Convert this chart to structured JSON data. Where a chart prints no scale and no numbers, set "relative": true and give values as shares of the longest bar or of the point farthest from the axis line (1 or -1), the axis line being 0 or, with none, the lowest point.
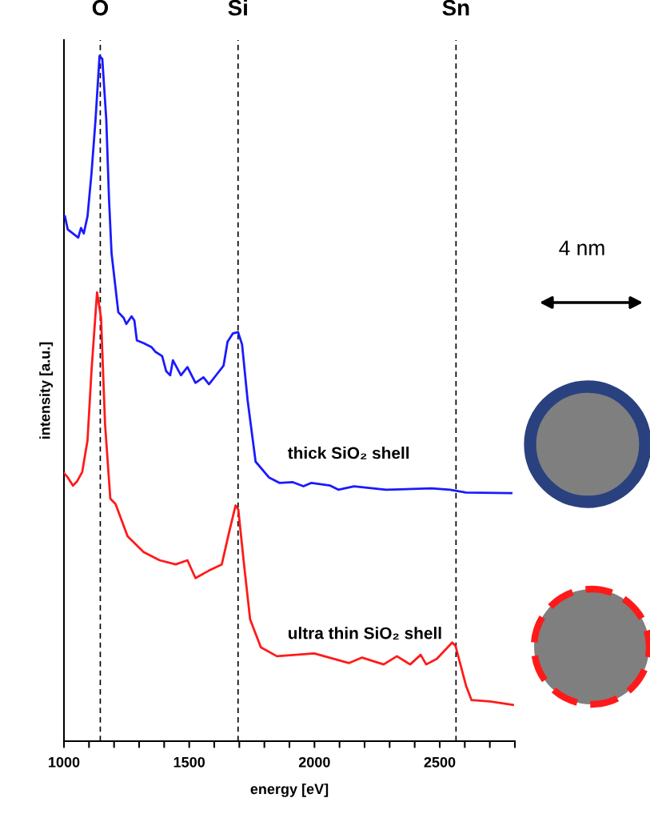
{
  "chart_data": {
    "type": "line",
    "relative": true,
    "xlabel": "energy [eV]",
    "ylabel": "intensity [a.u.]",
    "xlim": [
      1000,
      2800
    ],
    "xticks": [
      1000,
      {
        "value": 1100,
        "label": null
      },
      {
        "value": 1200,
        "label": null
      },
      {
        "value": 1300,
        "label": null
      },
      {
        "value": 1400,
        "label": null
      },
      1500,
      {
        "value": 1600,
        "label": null
      },
      {
        "value": 1700,
        "label": null
      },
      {
        "value": 1800,
        "label": null
      },
      {
        "value": 1900,
        "label": null
      },
      2000,
      {
        "value": 2100,
        "label": null
      },
      {
        "value": 2200,
        "label": null
      },
      {
        "value": 2300,
        "label": null
      },
      {
        "value": 2400,
        "label": null
      },
      2500,
      {
        "value": 2600,
        "label": null
      },
      {
        "value": 2700,
        "label": null
      },
      {
        "value": 2800,
        "label": null
      }
    ],
    "grid": false,
    "legend": false,
    "marker": "none",
    "line_style": "solid",
    "series": [
      {
        "name": "thick SiO₂ shell",
        "color": "#1a1aff",
        "x": [
          1004,
          1015,
          1057,
          1068,
          1079,
          1094,
          1110,
          1126,
          1142,
          1153,
          1169,
          1180,
          1190,
          1217,
          1238,
          1249,
          1270,
          1281,
          1291,
          1318,
          1350,
          1366,
          1392,
          1408,
          1424,
          1435,
          1467,
          1493,
          1525,
          1557,
          1579,
          1605,
          1637,
          1653,
          1674,
          1695,
          1711,
          1733,
          1765,
          1818,
          1860,
          1914,
          1956,
          1988,
          2063,
          2095,
          2158,
          2286,
          2467,
          2541,
          2605,
          2786
        ],
        "values": [
          0.766,
          0.747,
          0.735,
          0.749,
          0.741,
          0.766,
          0.829,
          0.907,
          1.0,
          0.996,
          0.907,
          0.79,
          0.712,
          0.626,
          0.618,
          0.609,
          0.62,
          0.614,
          0.585,
          0.581,
          0.575,
          0.568,
          0.562,
          0.54,
          0.534,
          0.556,
          0.534,
          0.546,
          0.523,
          0.531,
          0.521,
          0.533,
          0.548,
          0.583,
          0.595,
          0.597,
          0.579,
          0.498,
          0.408,
          0.385,
          0.377,
          0.378,
          0.372,
          0.377,
          0.373,
          0.367,
          0.372,
          0.367,
          0.369,
          0.367,
          0.363,
          0.362
        ]
      },
      {
        "name": "ultra thin SiO₂ shell",
        "color": "#ff1a1a",
        "x": [
          1001,
          1015,
          1036,
          1052,
          1073,
          1094,
          1110,
          1132,
          1148,
          1164,
          1185,
          1206,
          1254,
          1318,
          1382,
          1446,
          1493,
          1525,
          1579,
          1630,
          1658,
          1685,
          1696,
          1717,
          1743,
          1786,
          1850,
          1999,
          2137,
          2190,
          2276,
          2329,
          2382,
          2424,
          2446,
          2488,
          2550,
          2563,
          2605,
          2627,
          2701,
          2792
        ],
        "values": [
          0.391,
          0.385,
          0.373,
          0.379,
          0.393,
          0.439,
          0.541,
          0.655,
          0.618,
          0.463,
          0.354,
          0.346,
          0.299,
          0.276,
          0.264,
          0.258,
          0.264,
          0.238,
          0.249,
          0.258,
          0.303,
          0.344,
          0.338,
          0.264,
          0.178,
          0.137,
          0.124,
          0.128,
          0.114,
          0.122,
          0.112,
          0.124,
          0.112,
          0.126,
          0.112,
          0.12,
          0.144,
          0.139,
          0.081,
          0.06,
          0.058,
          0.053
        ]
      }
    ],
    "ref_lines": [
      {
        "axis": "x",
        "value": 1145,
        "label": "O",
        "color": "#000000",
        "line_style": "dashed"
      },
      {
        "axis": "x",
        "value": 1695,
        "label": "Si",
        "color": "#000000",
        "line_style": "dashed"
      },
      {
        "axis": "x",
        "value": 2565,
        "label": "Sn",
        "color": "#000000",
        "line_style": "dashed"
      }
    ],
    "annotations": [
      "4 nm"
    ]
  }
}
